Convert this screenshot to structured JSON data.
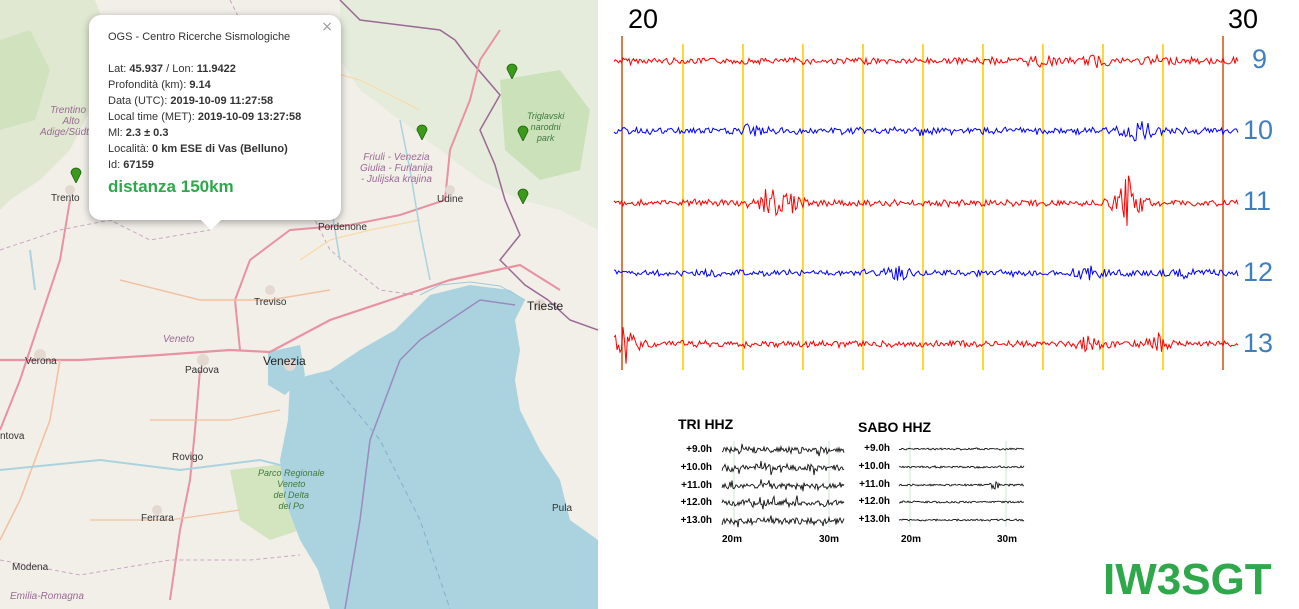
{
  "map": {
    "labels": {
      "trento": "Trento",
      "trentino": "Trentino -",
      "trentino2": "Alto",
      "trentino3": "Adige/Südtirol",
      "udine": "Udine",
      "pordenone": "Pordenone",
      "treviso": "Treviso",
      "trieste": "Trieste",
      "venezia": "Venezia",
      "veneto": "Veneto",
      "padova": "Padova",
      "verona": "Verona",
      "mantova": "ntova",
      "rovigo": "Rovigo",
      "ferrara": "Ferrara",
      "modena": "Modena",
      "emilia": "Emilia-Romagna",
      "pula": "Pula",
      "fvg1": "Friuli - Venezia",
      "fvg2": "Giulia - Furlanija",
      "fvg3": "- Julijska krajina",
      "triglav1": "Triglavski",
      "triglav2": "narodni",
      "triglav3": "park",
      "park1": "Parco Regionale",
      "park2": "Veneto",
      "park3": "del Delta",
      "park4": "del Po"
    },
    "marker_color": "#3a9a1a"
  },
  "popup": {
    "title": "OGS - Centro Ricerche Sismologiche",
    "close": "×",
    "lat_label": "Lat: ",
    "lat": "45.937",
    "lon_label": " / Lon: ",
    "lon": "11.9422",
    "depth_label": "Profondità (km): ",
    "depth": "9.14",
    "utc_label": "Data (UTC): ",
    "utc": "2019-10-09 11:27:58",
    "met_label": "Local time (MET): ",
    "met": "2019-10-09 13:27:58",
    "ml_label": "Ml: ",
    "ml": "2.3 ± 0.3",
    "loc_label": "Località: ",
    "loc": "0 km ESE di Vas (Belluno)",
    "id_label": "Id: ",
    "id": "67159",
    "distance": "distanza 150km"
  },
  "seismogram": {
    "start_label": "20",
    "end_label": "30",
    "hours": [
      "9",
      "10",
      "11",
      "12",
      "13"
    ],
    "colors": [
      "#ff0000",
      "#0000ff",
      "#ff0000",
      "#0000ff",
      "#ff0000"
    ],
    "marker_line_color": "#ffcc00",
    "edge_line_color": "#cc4400"
  },
  "panels": [
    {
      "title": "TRI HHZ",
      "rows": [
        "+9.0h",
        "+10.0h",
        "+11.0h",
        "+12.0h",
        "+13.0h"
      ],
      "ticks": [
        "20m",
        "30m"
      ]
    },
    {
      "title": "SABO HHZ",
      "rows": [
        "+9.0h",
        "+10.0h",
        "+11.0h",
        "+12.0h",
        "+13.0h"
      ],
      "ticks": [
        "20m",
        "30m"
      ]
    }
  ],
  "brand": "IW3SGT"
}
